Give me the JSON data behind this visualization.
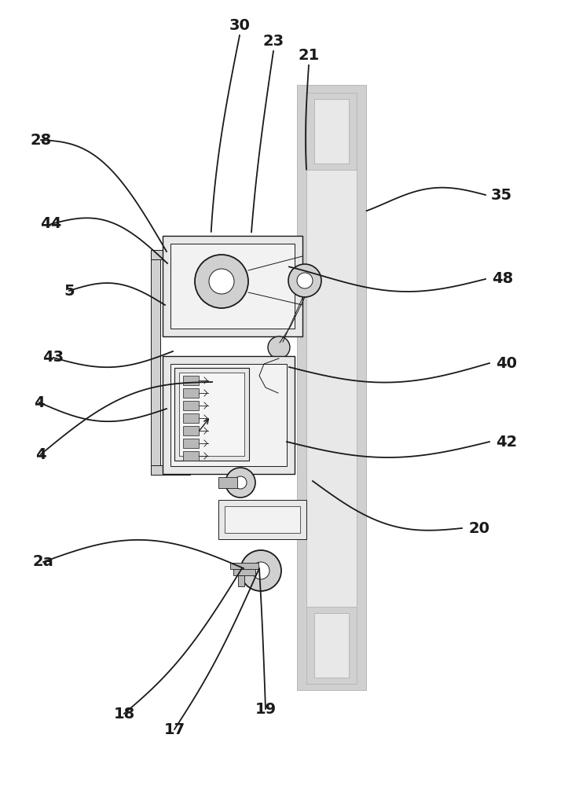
{
  "bg": "#ffffff",
  "lc": "#1a1a1a",
  "g1": "#b8b8b8",
  "g2": "#d0d0d0",
  "g3": "#e8e8e8",
  "lw": 1.3,
  "lt": 0.7,
  "fs": 14
}
